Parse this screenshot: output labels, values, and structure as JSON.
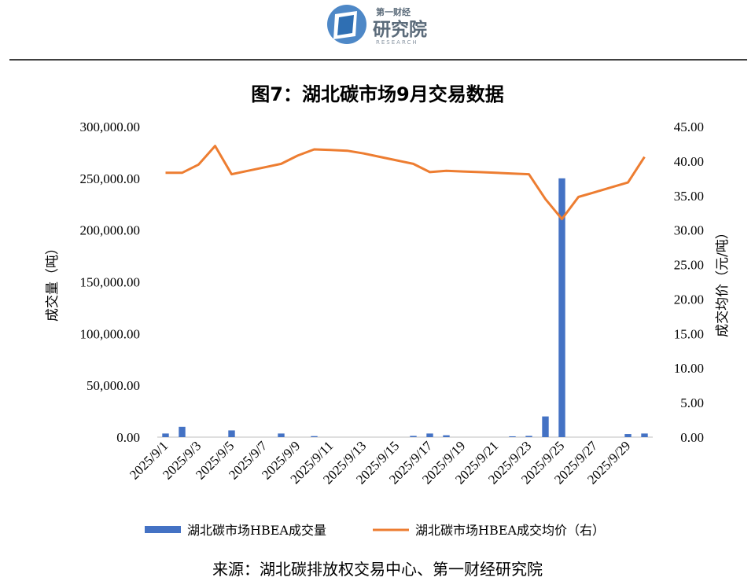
{
  "header": {
    "logo_small": "第一财经",
    "logo_main": "研究院",
    "logo_en": "RESEARCH"
  },
  "chart_data": {
    "type": "bar+line",
    "title": "图7：湖北碳市场9月交易数据",
    "ylabel_left": "成交量（吨）",
    "ylabel_right": "成交均价（元/吨）",
    "ylim_left": [
      0,
      300000
    ],
    "ylim_right": [
      0,
      45
    ],
    "yticks_left": [
      "0.00",
      "50,000.00",
      "100,000.00",
      "150,000.00",
      "200,000.00",
      "250,000.00",
      "300,000.00"
    ],
    "yticks_right": [
      "0.00",
      "5.00",
      "10.00",
      "15.00",
      "20.00",
      "25.00",
      "30.00",
      "35.00",
      "40.00",
      "45.00"
    ],
    "x": [
      "2025/9/1",
      "2025/9/2",
      "2025/9/3",
      "2025/9/4",
      "2025/9/5",
      "2025/9/6",
      "2025/9/7",
      "2025/9/8",
      "2025/9/9",
      "2025/9/10",
      "2025/9/11",
      "2025/9/12",
      "2025/9/13",
      "2025/9/14",
      "2025/9/15",
      "2025/9/16",
      "2025/9/17",
      "2025/9/18",
      "2025/9/19",
      "2025/9/20",
      "2025/9/21",
      "2025/9/22",
      "2025/9/23",
      "2025/9/24",
      "2025/9/25",
      "2025/9/26",
      "2025/9/27",
      "2025/9/28",
      "2025/9/29",
      "2025/9/30"
    ],
    "x_tick_labels_shown": [
      "2025/9/1",
      "2025/9/3",
      "2025/9/5",
      "2025/9/7",
      "2025/9/9",
      "2025/9/11",
      "2025/9/13",
      "2025/9/15",
      "2025/9/17",
      "2025/9/19",
      "2025/9/21",
      "2025/9/23",
      "2025/9/25",
      "2025/9/27",
      "2025/9/29"
    ],
    "series": [
      {
        "name": "湖北碳市场HBEA成交量",
        "type": "bar",
        "axis": "left",
        "color": "#4472c4",
        "values": [
          3500,
          10000,
          0,
          0,
          6500,
          0,
          0,
          3500,
          0,
          1000,
          0,
          0,
          0,
          0,
          0,
          1200,
          3500,
          1800,
          0,
          0,
          0,
          800,
          1200,
          20000,
          250000,
          0,
          0,
          0,
          3000,
          3500
        ]
      },
      {
        "name": "湖北碳市场HBEA成交均价（右）",
        "type": "line",
        "axis": "right",
        "color": "#ed7d31",
        "values": [
          38.3,
          38.3,
          39.5,
          42.2,
          38.1,
          38.6,
          39.1,
          39.6,
          40.8,
          41.7,
          41.6,
          41.5,
          41.1,
          40.6,
          40.1,
          39.6,
          38.4,
          38.6,
          38.5,
          38.4,
          38.3,
          38.2,
          38.1,
          34.5,
          31.6,
          34.8,
          35.5,
          36.2,
          36.9,
          40.6
        ]
      }
    ],
    "legend": "bottom"
  },
  "footer": {
    "source": "来源：湖北碳排放权交易中心、第一财经研究院"
  }
}
